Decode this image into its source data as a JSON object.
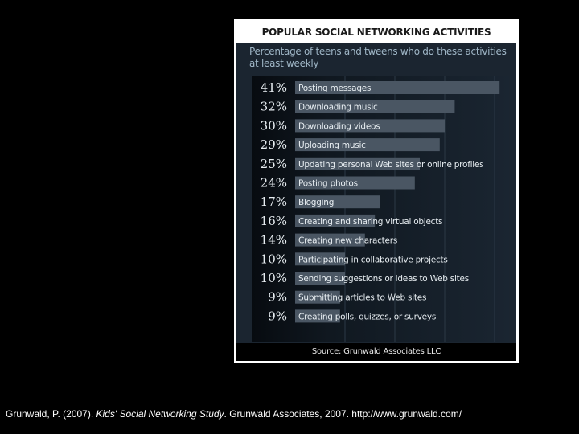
{
  "chart_data": {
    "type": "bar",
    "title": "POPULAR SOCIAL NETWORKING ACTIVITIES",
    "subtitle": "Percentage of teens and tweens who do these activities at least weekly",
    "categories": [
      "Posting messages",
      "Downloading music",
      "Downloading videos",
      "Uploading music",
      "Updating personal Web sites or online profiles",
      "Posting photos",
      "Blogging",
      "Creating and sharing virtual objects",
      "Creating new characters",
      "Participating in collaborative projects",
      "Sending suggestions or ideas to Web sites",
      "Submitting articles to Web sites",
      "Creating polls, quizzes, or surveys"
    ],
    "values": [
      41,
      32,
      30,
      29,
      25,
      24,
      17,
      16,
      14,
      10,
      10,
      9,
      9
    ],
    "value_labels": [
      "41%",
      "32%",
      "30%",
      "29%",
      "25%",
      "24%",
      "17%",
      "16%",
      "14%",
      "10%",
      "10%",
      "9%",
      "9%"
    ],
    "orientation": "horizontal",
    "xlim": [
      0,
      50
    ],
    "grid": true,
    "source": "Source: Grunwald Associates LLC"
  },
  "citation": {
    "author": "Grunwald, P. (2007). ",
    "work": "Kids' Social Networking Study",
    "rest": ". Grunwald Associates, 2007. http://www.grunwald.com/"
  },
  "colors": {
    "bar": "#4a5663",
    "background": "#1b2530",
    "label": "#e8eef2",
    "subtitle": "#9fb6c6"
  }
}
